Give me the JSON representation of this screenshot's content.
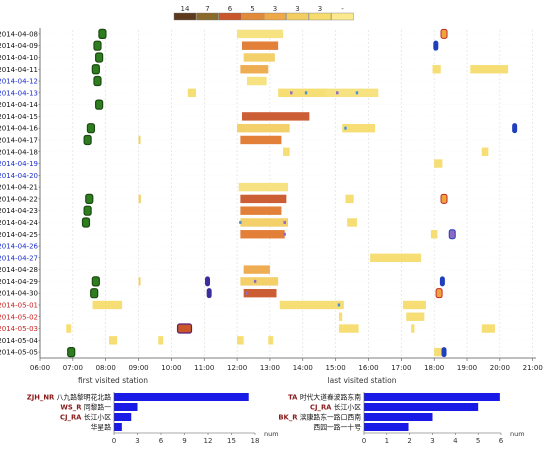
{
  "chart_data": [
    {
      "type": "timeline",
      "legend": {
        "values": [
          "14",
          "7",
          "6",
          "5",
          "3",
          "3",
          "3",
          "-"
        ],
        "colors": [
          "#5d3a1e",
          "#8a6a2a",
          "#c9552a",
          "#e08a3a",
          "#eda94a",
          "#f2cd62",
          "#f6dc6e",
          "#fbe98e"
        ]
      },
      "dates": [
        "2014-04-08",
        "2014-04-09",
        "2014-04-10",
        "2014-04-11",
        "2014-04-12",
        "2014-04-13",
        "2014-04-14",
        "2014-04-15",
        "2014-04-16",
        "2014-04-17",
        "2014-04-18",
        "2014-04-19",
        "2014-04-20",
        "2014-04-21",
        "2014-04-22",
        "2014-04-23",
        "2014-04-24",
        "2014-04-25",
        "2014-04-26",
        "2014-04-27",
        "2014-04-28",
        "2014-04-29",
        "2014-04-30",
        "2014-05-01",
        "2014-05-02",
        "2014-05-03",
        "2014-05-04",
        "2014-05-05"
      ],
      "date_colors": {
        "weekday": "#111111",
        "weekend": "#1a2ecc",
        "holiday": "#cc2222"
      },
      "date_kinds": [
        "weekday",
        "weekday",
        "weekday",
        "weekday",
        "weekend",
        "weekend",
        "weekday",
        "weekday",
        "weekday",
        "weekday",
        "weekday",
        "weekend",
        "weekend",
        "weekday",
        "weekday",
        "weekday",
        "weekday",
        "weekday",
        "weekend",
        "weekend",
        "weekday",
        "weekday",
        "weekday",
        "holiday",
        "holiday",
        "holiday",
        "weekday",
        "weekday"
      ],
      "x_ticks": [
        "06:00",
        "07:00",
        "08:00",
        "09:00",
        "10:00",
        "11:00",
        "12:00",
        "13:00",
        "14:00",
        "15:00",
        "16:00",
        "17:00",
        "18:00",
        "19:00",
        "20:00",
        "21:00"
      ],
      "x_range": [
        6,
        21.1
      ],
      "first_label": "first visited station",
      "last_label": "last visited station",
      "segments": [
        {
          "row": 0,
          "start": 12.0,
          "end": 13.4,
          "color": "#f5e07a"
        },
        {
          "row": 1,
          "start": 12.15,
          "end": 13.25,
          "color": "#e0782e"
        },
        {
          "row": 2,
          "start": 12.2,
          "end": 13.15,
          "color": "#f2cd62"
        },
        {
          "row": 3,
          "start": 12.1,
          "end": 12.95,
          "color": "#eda94a"
        },
        {
          "row": 3,
          "start": 17.95,
          "end": 18.2,
          "color": "#f6dc6e"
        },
        {
          "row": 3,
          "start": 19.1,
          "end": 20.25,
          "color": "#f6dc6e"
        },
        {
          "row": 4,
          "start": 12.3,
          "end": 12.9,
          "color": "#f5e07a"
        },
        {
          "row": 5,
          "start": 10.5,
          "end": 10.75,
          "color": "#f6dc6e"
        },
        {
          "row": 5,
          "start": 13.25,
          "end": 14.75,
          "color": "#f6dc6e"
        },
        {
          "row": 5,
          "start": 14.65,
          "end": 16.3,
          "color": "#f5e07a"
        },
        {
          "row": 7,
          "start": 12.15,
          "end": 14.2,
          "color": "#c9552a"
        },
        {
          "row": 8,
          "start": 12.0,
          "end": 13.6,
          "color": "#f2cd62"
        },
        {
          "row": 8,
          "start": 15.2,
          "end": 16.2,
          "color": "#f6dc6e"
        },
        {
          "row": 9,
          "start": 12.1,
          "end": 13.35,
          "color": "#e0782e"
        },
        {
          "row": 9,
          "start": 9.0,
          "end": 9.05,
          "color": "#f2cd62"
        },
        {
          "row": 10,
          "start": 13.4,
          "end": 13.6,
          "color": "#f6dc6e"
        },
        {
          "row": 10,
          "start": 19.45,
          "end": 19.65,
          "color": "#f6dc6e"
        },
        {
          "row": 11,
          "start": 18.0,
          "end": 18.25,
          "color": "#f6dc6e"
        },
        {
          "row": 13,
          "start": 12.05,
          "end": 13.55,
          "color": "#f5e07a"
        },
        {
          "row": 14,
          "start": 12.1,
          "end": 13.5,
          "color": "#c9552a"
        },
        {
          "row": 14,
          "start": 9.0,
          "end": 9.07,
          "color": "#f2cd62"
        },
        {
          "row": 14,
          "start": 15.3,
          "end": 15.55,
          "color": "#f6dc6e"
        },
        {
          "row": 15,
          "start": 12.1,
          "end": 13.35,
          "color": "#e0782e"
        },
        {
          "row": 16,
          "start": 12.1,
          "end": 13.55,
          "color": "#f2cd62"
        },
        {
          "row": 16,
          "start": 15.35,
          "end": 15.65,
          "color": "#f6dc6e"
        },
        {
          "row": 17,
          "start": 12.1,
          "end": 13.45,
          "color": "#e0782e"
        },
        {
          "row": 17,
          "start": 17.9,
          "end": 18.1,
          "color": "#f6dc6e"
        },
        {
          "row": 19,
          "start": 16.05,
          "end": 17.6,
          "color": "#f6dc6e"
        },
        {
          "row": 20,
          "start": 12.2,
          "end": 13.0,
          "color": "#eda94a"
        },
        {
          "row": 21,
          "start": 12.1,
          "end": 13.25,
          "color": "#f2cd62"
        },
        {
          "row": 21,
          "start": 9.0,
          "end": 9.05,
          "color": "#f2cd62"
        },
        {
          "row": 22,
          "start": 12.2,
          "end": 13.2,
          "color": "#c9552a"
        },
        {
          "row": 23,
          "start": 7.6,
          "end": 8.5,
          "color": "#f6dc6e"
        },
        {
          "row": 23,
          "start": 13.3,
          "end": 15.25,
          "color": "#f6dc6e"
        },
        {
          "row": 23,
          "start": 17.05,
          "end": 17.75,
          "color": "#f6dc6e"
        },
        {
          "row": 24,
          "start": 15.1,
          "end": 15.2,
          "color": "#f6dc6e"
        },
        {
          "row": 24,
          "start": 17.15,
          "end": 17.7,
          "color": "#f6dc6e"
        },
        {
          "row": 25,
          "start": 6.8,
          "end": 6.95,
          "color": "#f6dc6e"
        },
        {
          "row": 25,
          "start": 15.1,
          "end": 15.7,
          "color": "#f6dc6e"
        },
        {
          "row": 25,
          "start": 17.3,
          "end": 17.4,
          "color": "#f6dc6e"
        },
        {
          "row": 25,
          "start": 19.45,
          "end": 19.85,
          "color": "#f6dc6e"
        },
        {
          "row": 26,
          "start": 8.1,
          "end": 8.35,
          "color": "#f6dc6e"
        },
        {
          "row": 26,
          "start": 9.6,
          "end": 9.75,
          "color": "#f6dc6e"
        },
        {
          "row": 26,
          "start": 12.0,
          "end": 12.2,
          "color": "#f6dc6e"
        },
        {
          "row": 26,
          "start": 12.95,
          "end": 13.1,
          "color": "#f6dc6e"
        },
        {
          "row": 27,
          "start": 18.0,
          "end": 18.25,
          "color": "#f6dc6e"
        }
      ],
      "first_markers": [
        {
          "row": 0,
          "t": 7.9,
          "color": "#2e7d1f"
        },
        {
          "row": 1,
          "t": 7.75,
          "color": "#2e7d1f"
        },
        {
          "row": 2,
          "t": 7.8,
          "color": "#2e7d1f"
        },
        {
          "row": 3,
          "t": 7.7,
          "color": "#2e7d1f"
        },
        {
          "row": 4,
          "t": 7.75,
          "color": "#2e7d1f"
        },
        {
          "row": 6,
          "t": 7.8,
          "color": "#2e7d1f"
        },
        {
          "row": 8,
          "t": 7.55,
          "color": "#2e7d1f"
        },
        {
          "row": 9,
          "t": 7.45,
          "color": "#2e7d1f"
        },
        {
          "row": 14,
          "t": 7.5,
          "color": "#2e7d1f"
        },
        {
          "row": 15,
          "t": 7.45,
          "color": "#2e7d1f"
        },
        {
          "row": 16,
          "t": 7.4,
          "color": "#2e7d1f"
        },
        {
          "row": 21,
          "t": 7.7,
          "color": "#2e7d1f"
        },
        {
          "row": 22,
          "t": 7.65,
          "color": "#2e7d1f"
        },
        {
          "row": 25,
          "t": 10.4,
          "color": "#c9552a",
          "edge": "#5a1e7a",
          "w": 14
        },
        {
          "row": 27,
          "t": 6.95,
          "color": "#2e7d1f"
        }
      ],
      "last_markers": [
        {
          "row": 0,
          "t": 18.3,
          "color": "#f2a23a",
          "edge": "#c0282a"
        },
        {
          "row": 1,
          "t": 18.05,
          "color": "#1f3fbf"
        },
        {
          "row": 8,
          "t": 20.45,
          "color": "#1f3fbf"
        },
        {
          "row": 14,
          "t": 18.3,
          "color": "#f2a23a",
          "edge": "#c0282a"
        },
        {
          "row": 17,
          "t": 18.55,
          "color": "#8a6ac4",
          "edge": "#1f3fbf"
        },
        {
          "row": 21,
          "t": 11.1,
          "color": "#3a2e9e"
        },
        {
          "row": 21,
          "t": 18.25,
          "color": "#1f3fbf"
        },
        {
          "row": 22,
          "t": 11.15,
          "color": "#3a2e9e"
        },
        {
          "row": 22,
          "t": 18.15,
          "color": "#f2a23a",
          "edge": "#c0282a"
        },
        {
          "row": 27,
          "t": 18.3,
          "color": "#1f3fbf"
        }
      ],
      "dots": [
        {
          "row": 5,
          "t": 13.65,
          "color": "#8a6ac4"
        },
        {
          "row": 5,
          "t": 14.1,
          "color": "#4a90d9"
        },
        {
          "row": 5,
          "t": 15.05,
          "color": "#8a6ac4"
        },
        {
          "row": 5,
          "t": 15.65,
          "color": "#4a90d9"
        },
        {
          "row": 8,
          "t": 15.3,
          "color": "#4a90d9"
        },
        {
          "row": 16,
          "t": 12.1,
          "color": "#4a90d9"
        },
        {
          "row": 16,
          "t": 13.45,
          "color": "#8a6ac4"
        },
        {
          "row": 17,
          "t": 13.45,
          "color": "#8a6ac4"
        },
        {
          "row": 21,
          "t": 12.55,
          "color": "#8a6ac4"
        },
        {
          "row": 22,
          "t": 12.3,
          "color": "#8a6ac4"
        },
        {
          "row": 23,
          "t": 15.1,
          "color": "#4a90d9"
        }
      ]
    },
    {
      "type": "bar",
      "orientation": "horizontal",
      "code_labels": [
        "ZJH_NR",
        "WS_R",
        "CJ_RA",
        ""
      ],
      "categories": [
        "八九路黎明花北路",
        "同黎路一",
        "长江小区",
        "华星路"
      ],
      "values": [
        17.2,
        3.0,
        2.2,
        1.0
      ],
      "xlim": [
        0,
        18
      ],
      "xticks": [
        "0",
        "3",
        "6",
        "9",
        "12",
        "15",
        "18"
      ],
      "unit": "num",
      "bar_color": "#1a1ae6"
    },
    {
      "type": "bar",
      "orientation": "horizontal",
      "code_labels": [
        "TA",
        "CJ_RA",
        "BK_R",
        ""
      ],
      "categories": [
        "时代大道春波路东南",
        "长江小区",
        "滨康路东一路口西南",
        "西园一路一十号"
      ],
      "values": [
        5.95,
        5.0,
        3.0,
        1.95
      ],
      "xlim": [
        0,
        6
      ],
      "xticks": [
        "0",
        "1",
        "2",
        "3",
        "4",
        "5",
        "6"
      ],
      "unit": "num",
      "bar_color": "#1a1ae6"
    }
  ]
}
